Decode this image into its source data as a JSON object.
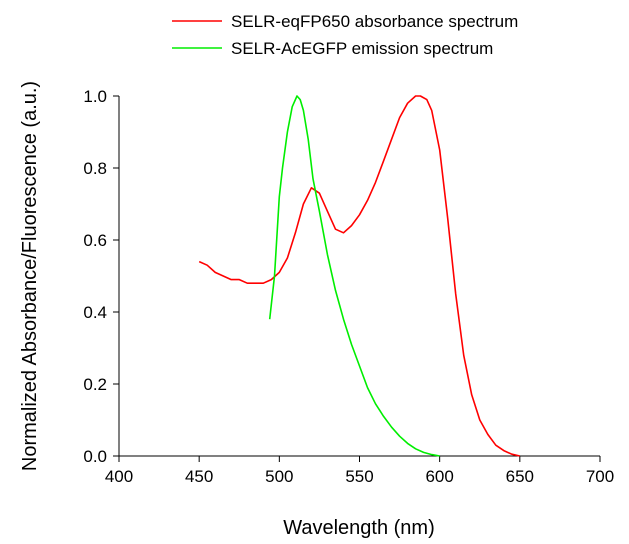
{
  "chart_data": {
    "type": "line",
    "title": "",
    "xlabel": "Wavelength (nm)",
    "ylabel": "Normalized Absorbance/Fluorescence (a.u.)",
    "xlim": [
      400,
      700
    ],
    "ylim": [
      0.0,
      1.0
    ],
    "xticks": [
      400,
      450,
      500,
      550,
      600,
      650,
      700
    ],
    "yticks": [
      0.0,
      0.2,
      0.4,
      0.6,
      0.8,
      1.0
    ],
    "xtick_labels": [
      "400",
      "450",
      "500",
      "550",
      "600",
      "650",
      "700"
    ],
    "ytick_labels": [
      "0.0",
      "0.2",
      "0.4",
      "0.6",
      "0.8",
      "1.0"
    ],
    "grid": false,
    "legend_position": "top-right",
    "series": [
      {
        "name": "SELR-eqFP650 absorbance spectrum",
        "color": "#ff0000",
        "x": [
          450,
          455,
          460,
          465,
          470,
          475,
          480,
          485,
          490,
          495,
          500,
          505,
          510,
          515,
          520,
          525,
          530,
          535,
          540,
          545,
          550,
          555,
          560,
          565,
          570,
          575,
          580,
          585,
          588,
          592,
          595,
          600,
          605,
          610,
          615,
          620,
          625,
          630,
          635,
          640,
          645,
          650
        ],
        "y": [
          0.54,
          0.53,
          0.51,
          0.5,
          0.49,
          0.49,
          0.48,
          0.48,
          0.48,
          0.49,
          0.51,
          0.55,
          0.62,
          0.7,
          0.745,
          0.73,
          0.68,
          0.63,
          0.62,
          0.64,
          0.67,
          0.71,
          0.76,
          0.82,
          0.88,
          0.94,
          0.98,
          1.0,
          1.0,
          0.99,
          0.96,
          0.85,
          0.66,
          0.45,
          0.28,
          0.17,
          0.1,
          0.06,
          0.03,
          0.015,
          0.005,
          0.0
        ]
      },
      {
        "name": "SELR-AcEGFP emission spectrum",
        "color": "#00ee00",
        "x": [
          494,
          497,
          500,
          502,
          505,
          508,
          511,
          513,
          515,
          518,
          521,
          525,
          530,
          535,
          540,
          545,
          550,
          555,
          560,
          565,
          570,
          575,
          580,
          585,
          590,
          595,
          600
        ],
        "y": [
          0.38,
          0.5,
          0.72,
          0.8,
          0.9,
          0.97,
          1.0,
          0.99,
          0.96,
          0.88,
          0.77,
          0.68,
          0.56,
          0.46,
          0.38,
          0.31,
          0.25,
          0.19,
          0.145,
          0.11,
          0.08,
          0.055,
          0.035,
          0.02,
          0.01,
          0.004,
          0.0
        ]
      }
    ]
  }
}
